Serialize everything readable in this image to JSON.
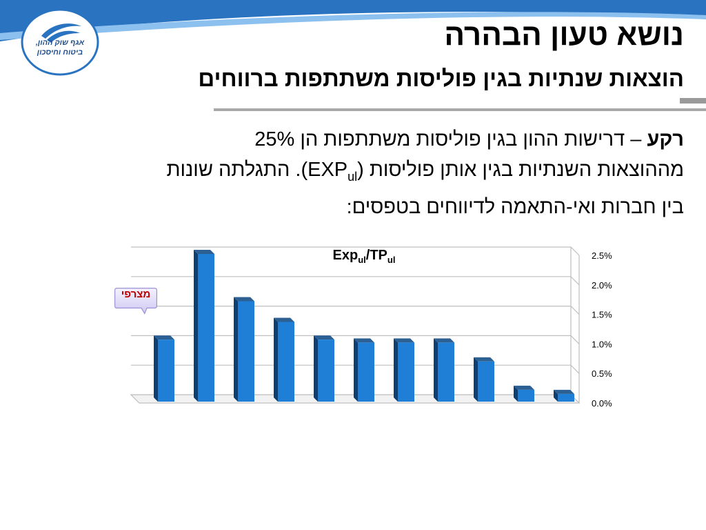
{
  "logo": {
    "line1": "אגף שוק ההון,",
    "line2": "ביטוח וחיסכון"
  },
  "title": "נושא טעון הבהרה",
  "subtitle": "הוצאות שנתיות בגין פוליסות משתתפות ברווחים",
  "body": {
    "lead": "רקע",
    "dash": " – ",
    "line1_rest": "דרישות ההון בגין פוליסות משתתפות הן 25%",
    "line2_a": "מההוצאות השנתיות בגין אותן פוליסות (EXP",
    "line2_sub": "ul",
    "line2_b": "). התגלתה שונות",
    "line3": "בין חברות ואי-התאמה לדיווחים בטפסים:"
  },
  "callout": {
    "label": "מצרפי"
  },
  "colors": {
    "bar": "#1f7fd6",
    "bar_dark": "#0d3f72",
    "grid": "#bfbfbf",
    "swoosh": "#2a73c0",
    "callout_text": "#c00000"
  },
  "chart_data": {
    "type": "bar",
    "title_main": "Exp",
    "title_sub1": "ul",
    "title_mid": "/TP",
    "title_sub2": "ul",
    "values": [
      1.05,
      2.5,
      1.7,
      1.35,
      1.05,
      1.0,
      1.0,
      1.0,
      0.68,
      0.2,
      0.13
    ],
    "ylim": [
      0,
      2.5
    ],
    "yticks": [
      "0.0%",
      "0.5%",
      "1.0%",
      "1.5%",
      "2.0%",
      "2.5%"
    ],
    "ytick_values": [
      0,
      0.5,
      1.0,
      1.5,
      2.0,
      2.5
    ],
    "grid": true,
    "axis_side": "right"
  }
}
